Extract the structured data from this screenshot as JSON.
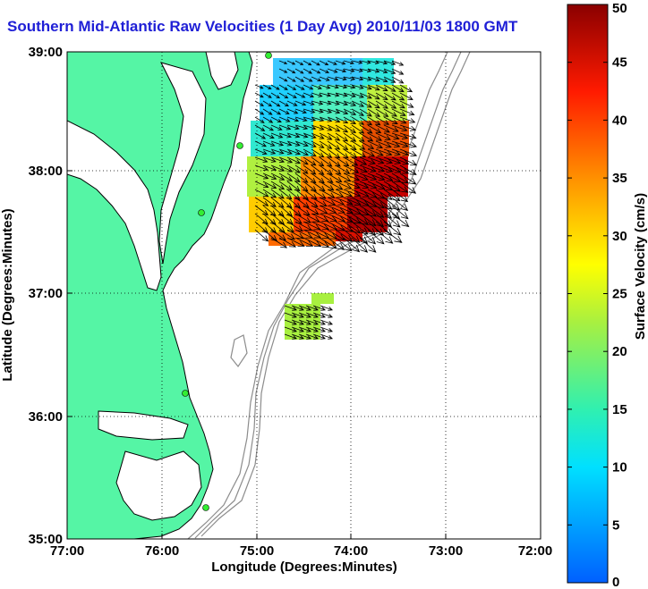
{
  "title": "Southern Mid-Atlantic Raw Velocities (1 Day Avg) 2010/11/03 1800 GMT",
  "map": {
    "xlabel": "Longitude (Degrees:Minutes)",
    "ylabel": "Latitude (Degrees:Minutes)",
    "x_ticks": [
      "77:00",
      "76:00",
      "75:00",
      "74:00",
      "73:00",
      "72:00"
    ],
    "y_ticks": [
      "39:00",
      "38:00",
      "37:00",
      "36:00",
      "35:00"
    ],
    "land_color": "#55f5a5",
    "grid": "dotted"
  },
  "colorbar": {
    "label": "Surface Velocity (cm/s)",
    "ticks": [
      "0",
      "5",
      "10",
      "15",
      "20",
      "25",
      "30",
      "35",
      "40",
      "45",
      "50"
    ],
    "min": 0,
    "max": 50
  }
}
